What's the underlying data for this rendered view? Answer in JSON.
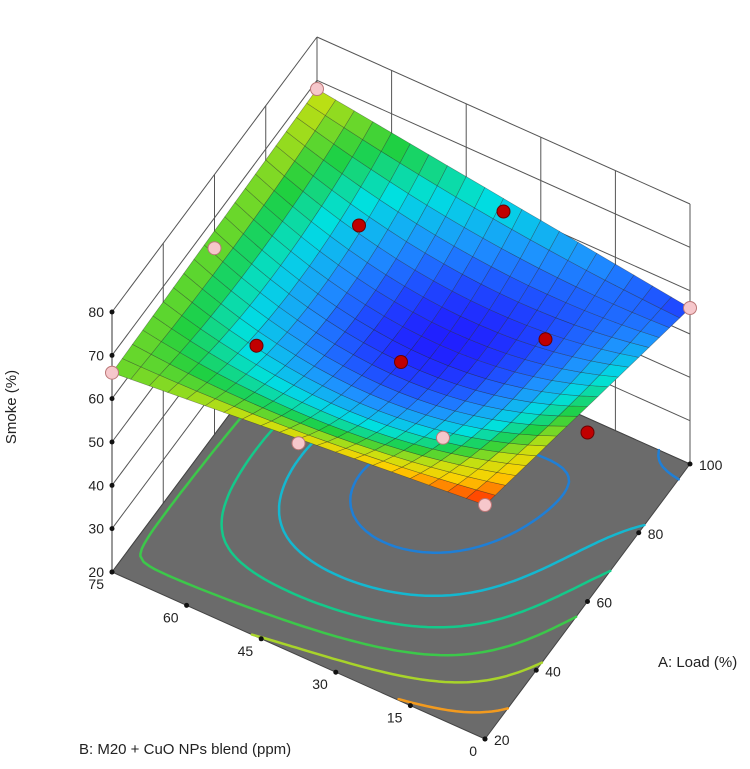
{
  "chart_data": {
    "type": "surface3d",
    "zlabel": "Smoke (%)",
    "xlabel": "A: Load (%)",
    "ylabel": "B: M20 + CuO NPs blend (ppm)",
    "x_range": [
      20,
      100
    ],
    "y_range": [
      0,
      75
    ],
    "z_range": [
      20,
      80
    ],
    "x_ticks": [
      "20",
      "40",
      "60",
      "80",
      "100"
    ],
    "y_ticks": [
      "0",
      "15",
      "30",
      "45",
      "60",
      "75"
    ],
    "z_ticks": [
      "20",
      "30",
      "40",
      "50",
      "60",
      "70",
      "80"
    ],
    "surface_corners": [
      {
        "x": 20,
        "y": 0,
        "z": 74
      },
      {
        "x": 100,
        "y": 0,
        "z": 56
      },
      {
        "x": 100,
        "y": 75,
        "z": 68
      },
      {
        "x": 20,
        "y": 75,
        "z": 66
      }
    ],
    "surface_center": {
      "x": 60,
      "y": 37.5,
      "z": 56
    },
    "design_points": [
      {
        "x": 20,
        "y": 0,
        "z": 74,
        "above_surface": false
      },
      {
        "x": 100,
        "y": 0,
        "z": 56,
        "above_surface": false
      },
      {
        "x": 100,
        "y": 75,
        "z": 68,
        "above_surface": false
      },
      {
        "x": 20,
        "y": 75,
        "z": 66,
        "above_surface": false
      },
      {
        "x": 20,
        "y": 37.5,
        "z": 69,
        "above_surface": false
      },
      {
        "x": 100,
        "y": 37.5,
        "z": 59,
        "above_surface": true
      },
      {
        "x": 60,
        "y": 0,
        "z": 59,
        "above_surface": true
      },
      {
        "x": 60,
        "y": 75,
        "z": 63,
        "above_surface": false
      },
      {
        "x": 60,
        "y": 37.5,
        "z": 56,
        "above_surface": true
      },
      {
        "x": 80,
        "y": 18.75,
        "z": 55,
        "above_surface": true
      },
      {
        "x": 40,
        "y": 56.25,
        "z": 66,
        "above_surface": true
      },
      {
        "x": 40,
        "y": 18.75,
        "z": 64,
        "above_surface": false
      },
      {
        "x": 80,
        "y": 56.25,
        "z": 62,
        "above_surface": true
      }
    ],
    "contour_levels": [
      {
        "z": 57,
        "color": "#1f7fd6"
      },
      {
        "z": 60,
        "color": "#14b8d0"
      },
      {
        "z": 63,
        "color": "#14c98a"
      },
      {
        "z": 66,
        "color": "#3cc84a"
      },
      {
        "z": 69,
        "color": "#a8d42a"
      },
      {
        "z": 72,
        "color": "#f29a1e"
      }
    ],
    "colormap": [
      "#2020ff",
      "#1e90ff",
      "#00e0e0",
      "#20d040",
      "#c8e010",
      "#ffd000",
      "#ff2000"
    ],
    "grid": true,
    "floor_color": "#6b6b6b"
  }
}
